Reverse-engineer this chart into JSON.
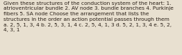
{
  "text": "Given these structures of the conduction system of the heart: 1.\natrioventricular bundle 2. AV node 3. bundle branches 4. Purkinje\nfibers 5. SA node Choose the arrangement that lists the\nstructures in the order an action potential passes through them\na. 2, 5, 1, 3, 4 b. 2, 5, 3, 1, 4 c. 2, 5, 4, 1, 3 d. 5, 2, 1, 3, 4 e. 5, 2,\n4, 3, 1",
  "background_color": "#e8e0d0",
  "text_color": "#2a2018",
  "font_size": 5.4,
  "fig_width": 2.62,
  "fig_height": 0.79,
  "dpi": 100
}
